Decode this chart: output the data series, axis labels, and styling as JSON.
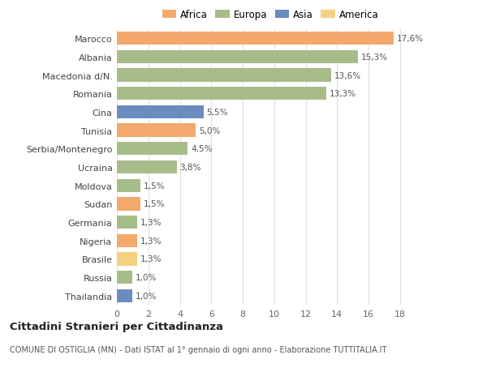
{
  "categories": [
    "Marocco",
    "Albania",
    "Macedonia d/N.",
    "Romania",
    "Cina",
    "Tunisia",
    "Serbia/Montenegro",
    "Ucraina",
    "Moldova",
    "Sudan",
    "Germania",
    "Nigeria",
    "Brasile",
    "Russia",
    "Thailandia"
  ],
  "values": [
    17.6,
    15.3,
    13.6,
    13.3,
    5.5,
    5.0,
    4.5,
    3.8,
    1.5,
    1.5,
    1.3,
    1.3,
    1.3,
    1.0,
    1.0
  ],
  "labels": [
    "17,6%",
    "15,3%",
    "13,6%",
    "13,3%",
    "5,5%",
    "5,0%",
    "4,5%",
    "3,8%",
    "1,5%",
    "1,5%",
    "1,3%",
    "1,3%",
    "1,3%",
    "1,0%",
    "1,0%"
  ],
  "colors": [
    "#F2A96B",
    "#A8BC8A",
    "#A8BC8A",
    "#A8BC8A",
    "#6B8CBE",
    "#F2A96B",
    "#A8BC8A",
    "#A8BC8A",
    "#A8BC8A",
    "#F2A96B",
    "#A8BC8A",
    "#F2A96B",
    "#F5D080",
    "#A8BC8A",
    "#6B8CBE"
  ],
  "legend_labels": [
    "Africa",
    "Europa",
    "Asia",
    "America"
  ],
  "legend_colors": [
    "#F2A96B",
    "#A8BC8A",
    "#6B8CBE",
    "#F5D080"
  ],
  "title": "Cittadini Stranieri per Cittadinanza",
  "subtitle": "COMUNE DI OSTIGLIA (MN) - Dati ISTAT al 1° gennaio di ogni anno - Elaborazione TUTTITALIA.IT",
  "xlabel_ticks": [
    0,
    2,
    4,
    6,
    8,
    10,
    12,
    14,
    16,
    18
  ],
  "xlim": [
    0,
    19.5
  ],
  "background_color": "#ffffff",
  "grid_color": "#e0e0e0",
  "bar_area_bg": "#ffffff"
}
